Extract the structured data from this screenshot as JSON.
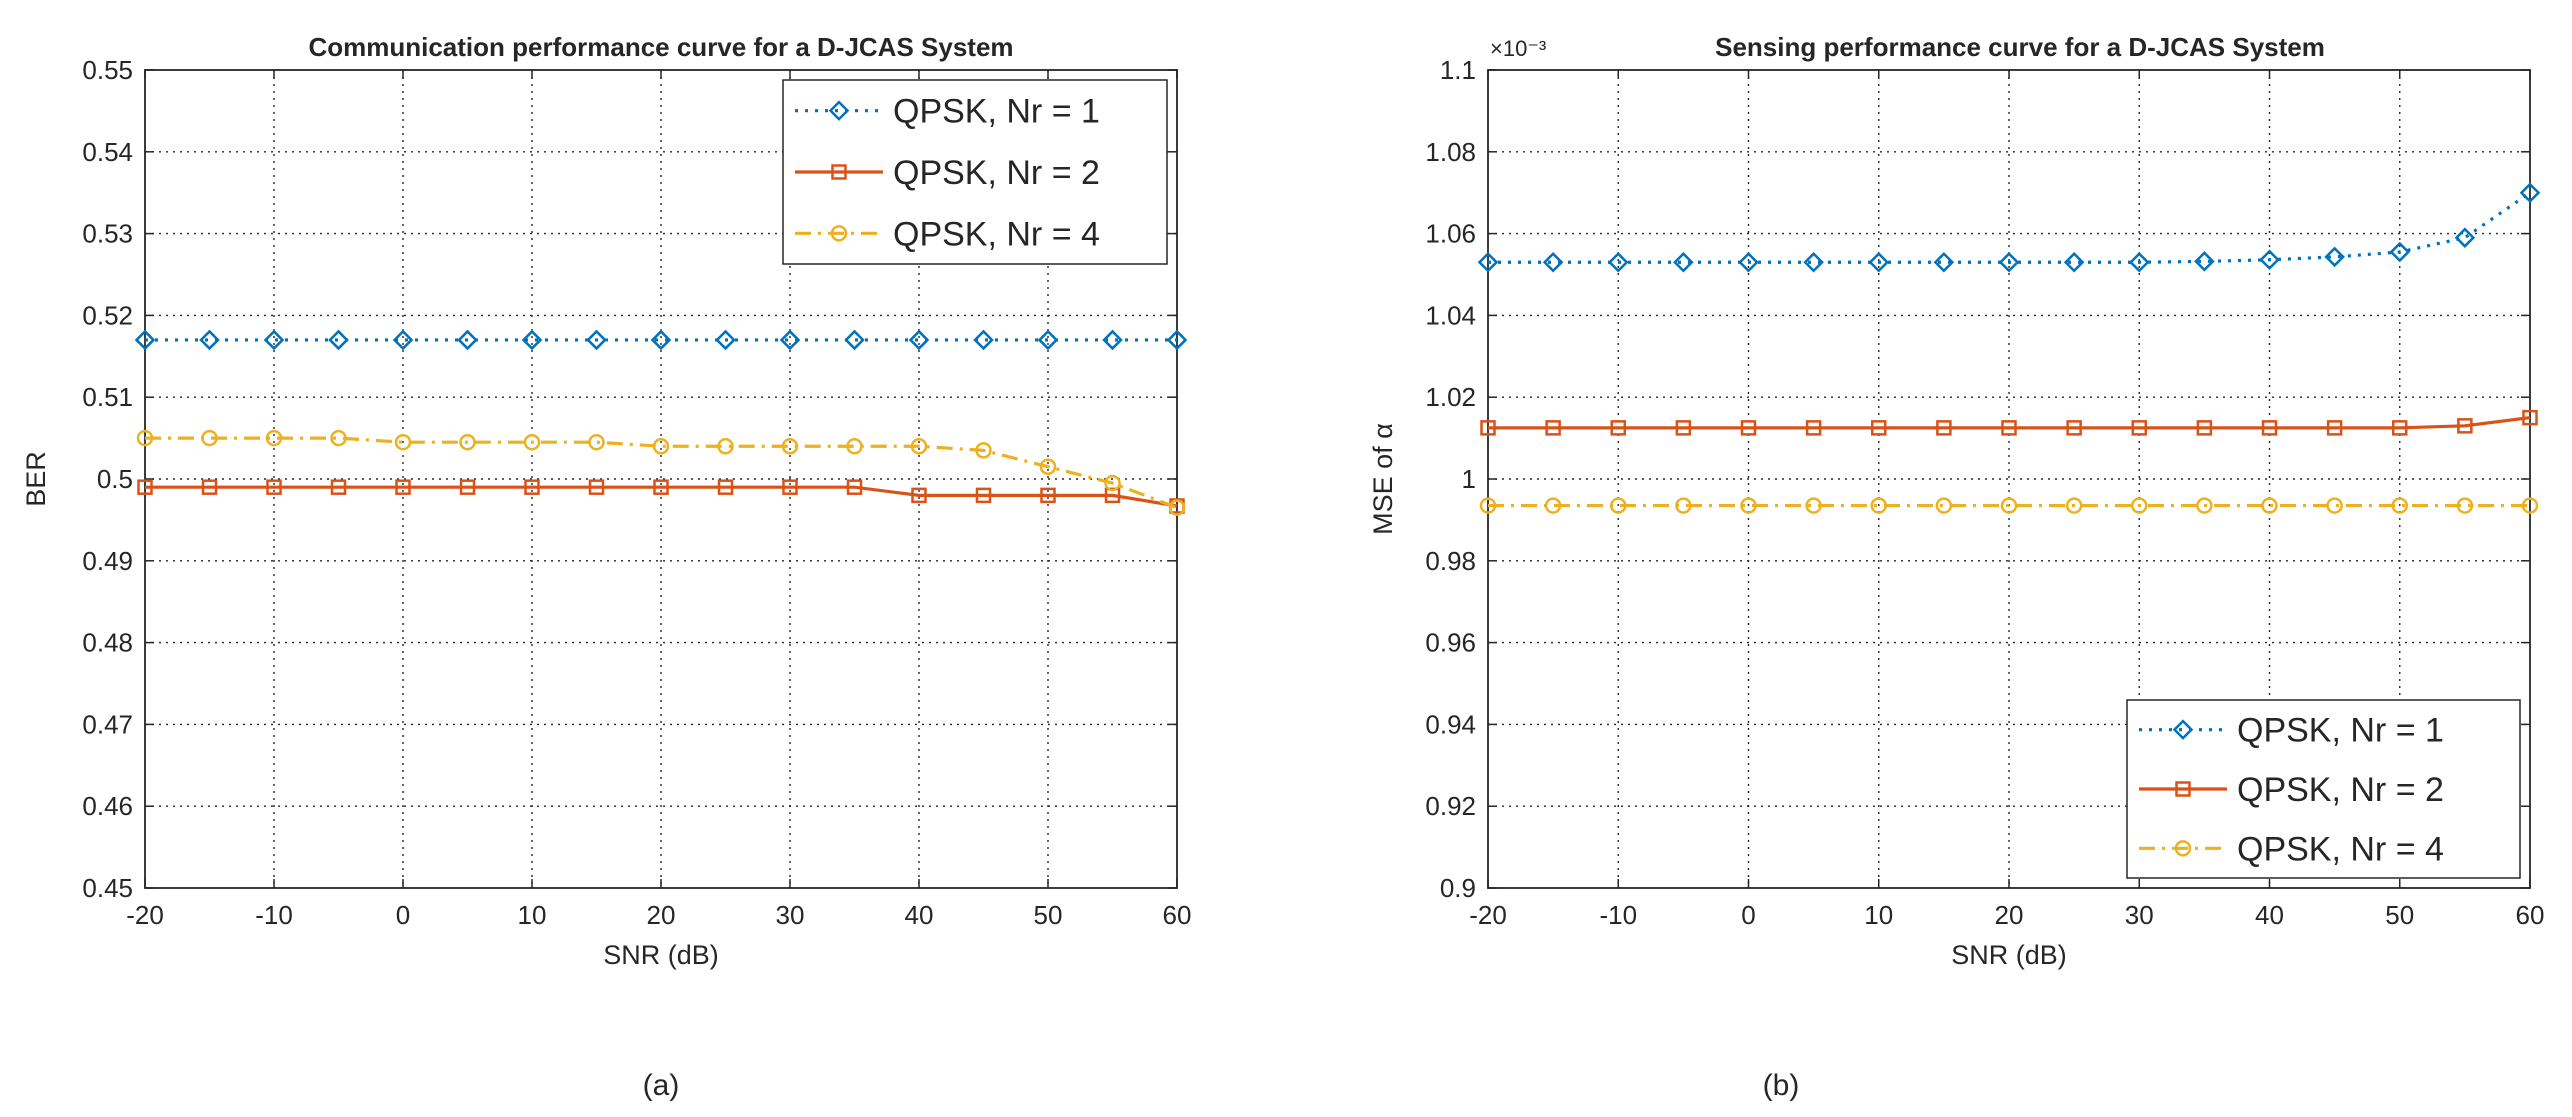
{
  "chart_data": [
    {
      "panel": "a",
      "caption": "(a)",
      "type": "line",
      "title": "Communication performance curve for a D-JCAS System",
      "xlabel": "SNR (dB)",
      "ylabel": "BER",
      "xlim": [
        -20,
        60
      ],
      "ylim": [
        0.45,
        0.55
      ],
      "xticks": [
        -20,
        -10,
        0,
        10,
        20,
        30,
        40,
        50,
        60
      ],
      "xtick_labels": [
        "-20",
        "-10",
        "0",
        "10",
        "20",
        "30",
        "40",
        "50",
        "60"
      ],
      "yticks": [
        0.45,
        0.46,
        0.47,
        0.48,
        0.49,
        0.5,
        0.51,
        0.52,
        0.53,
        0.54,
        0.55
      ],
      "ytick_labels": [
        "0.45",
        "0.46",
        "0.47",
        "0.48",
        "0.49",
        "0.5",
        "0.51",
        "0.52",
        "0.53",
        "0.54",
        "0.55"
      ],
      "grid": true,
      "legend_position": "top-right",
      "x": [
        -20,
        -15,
        -10,
        -5,
        0,
        5,
        10,
        15,
        20,
        25,
        30,
        35,
        40,
        45,
        50,
        55,
        60
      ],
      "series": [
        {
          "name": "QPSK, Nr = 1",
          "color": "#0072BD",
          "marker": "diamond",
          "line": "dotted",
          "values": [
            0.517,
            0.517,
            0.517,
            0.517,
            0.517,
            0.517,
            0.517,
            0.517,
            0.517,
            0.517,
            0.517,
            0.517,
            0.517,
            0.517,
            0.517,
            0.517,
            0.517
          ]
        },
        {
          "name": "QPSK, Nr = 2",
          "color": "#D95319",
          "marker": "square",
          "line": "solid",
          "values": [
            0.499,
            0.499,
            0.499,
            0.499,
            0.499,
            0.499,
            0.499,
            0.499,
            0.499,
            0.499,
            0.499,
            0.499,
            0.498,
            0.498,
            0.498,
            0.498,
            0.4967
          ]
        },
        {
          "name": "QPSK, Nr = 4",
          "color": "#EDB120",
          "marker": "circle",
          "line": "dashdot",
          "values": [
            0.505,
            0.505,
            0.505,
            0.505,
            0.5045,
            0.5045,
            0.5045,
            0.5045,
            0.504,
            0.504,
            0.504,
            0.504,
            0.504,
            0.5035,
            0.5015,
            0.4995,
            0.4965
          ]
        }
      ]
    },
    {
      "panel": "b",
      "caption": "(b)",
      "type": "line",
      "title": "Sensing performance curve for a D-JCAS System",
      "xlabel": "SNR (dB)",
      "ylabel": "MSE of α",
      "y_exponent": "×10⁻³",
      "xlim": [
        -20,
        60
      ],
      "ylim": [
        0.9,
        1.1
      ],
      "xticks": [
        -20,
        -10,
        0,
        10,
        20,
        30,
        40,
        50,
        60
      ],
      "xtick_labels": [
        "-20",
        "-10",
        "0",
        "10",
        "20",
        "30",
        "40",
        "50",
        "60"
      ],
      "yticks": [
        0.9,
        0.92,
        0.94,
        0.96,
        0.98,
        1.0,
        1.02,
        1.04,
        1.06,
        1.08,
        1.1
      ],
      "ytick_labels": [
        "0.9",
        "0.92",
        "0.94",
        "0.96",
        "0.98",
        "1",
        "1.02",
        "1.04",
        "1.06",
        "1.08",
        "1.1"
      ],
      "grid": true,
      "legend_position": "bottom-right",
      "x": [
        -20,
        -15,
        -10,
        -5,
        0,
        5,
        10,
        15,
        20,
        25,
        30,
        35,
        40,
        45,
        50,
        55,
        60
      ],
      "series": [
        {
          "name": "QPSK, Nr = 1",
          "color": "#0072BD",
          "marker": "diamond",
          "line": "dotted",
          "values": [
            1.053,
            1.053,
            1.053,
            1.053,
            1.053,
            1.053,
            1.053,
            1.053,
            1.053,
            1.053,
            1.053,
            1.0532,
            1.0536,
            1.0543,
            1.0555,
            1.059,
            1.07
          ]
        },
        {
          "name": "QPSK, Nr = 2",
          "color": "#D95319",
          "marker": "square",
          "line": "solid",
          "values": [
            1.0125,
            1.0125,
            1.0125,
            1.0125,
            1.0125,
            1.0125,
            1.0125,
            1.0125,
            1.0125,
            1.0125,
            1.0125,
            1.0125,
            1.0125,
            1.0125,
            1.0125,
            1.013,
            1.015
          ]
        },
        {
          "name": "QPSK, Nr = 4",
          "color": "#EDB120",
          "marker": "circle",
          "line": "dashdot",
          "values": [
            0.9935,
            0.9935,
            0.9935,
            0.9935,
            0.9935,
            0.9935,
            0.9935,
            0.9935,
            0.9935,
            0.9935,
            0.9935,
            0.9935,
            0.9935,
            0.9935,
            0.9935,
            0.9935,
            0.9935
          ]
        }
      ]
    }
  ]
}
